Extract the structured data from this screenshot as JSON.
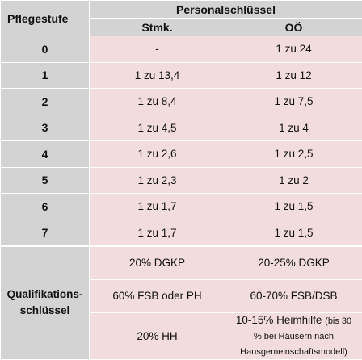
{
  "header": {
    "stufe_label": "Pflegestufe",
    "group_label": "Personalschlüssel",
    "col_stmk": "Stmk.",
    "col_oo": "OÖ"
  },
  "rows": [
    {
      "stufe": "0",
      "stmk": "-",
      "oo": "1 zu 24"
    },
    {
      "stufe": "1",
      "stmk": "1 zu 13,4",
      "oo": "1 zu 12"
    },
    {
      "stufe": "2",
      "stmk": "1 zu 8,4",
      "oo": "1 zu 7,5"
    },
    {
      "stufe": "3",
      "stmk": "1 zu 4,5",
      "oo": "1 zu 4"
    },
    {
      "stufe": "4",
      "stmk": "1 zu 2,6",
      "oo": "1 zu 2,5"
    },
    {
      "stufe": "5",
      "stmk": "1 zu 2,3",
      "oo": "1 zu 2"
    },
    {
      "stufe": "6",
      "stmk": "1 zu 1,7",
      "oo": "1 zu 1,5"
    },
    {
      "stufe": "7",
      "stmk": "1 zu 1,7",
      "oo": "1 zu 1,5"
    }
  ],
  "qualification": {
    "label_line1": "Qualifikations-",
    "label_line2": "schlüssel",
    "stmk": [
      "20% DGKP",
      "60% FSB oder PH",
      "20% HH"
    ],
    "oo": [
      "20-25% DGKP",
      "60-70% FSB/DSB"
    ],
    "oo_last_main": "10-15% Heimhilfe",
    "oo_last_note1": "(bis 30",
    "oo_last_note2": "% bei Häusern nach",
    "oo_last_note3": "Hausgemeinschaftsmodell)"
  },
  "colors": {
    "header_gray": "#d3d3d3",
    "cell_pink": "#f2dcdd",
    "grid": "#ffffff"
  }
}
